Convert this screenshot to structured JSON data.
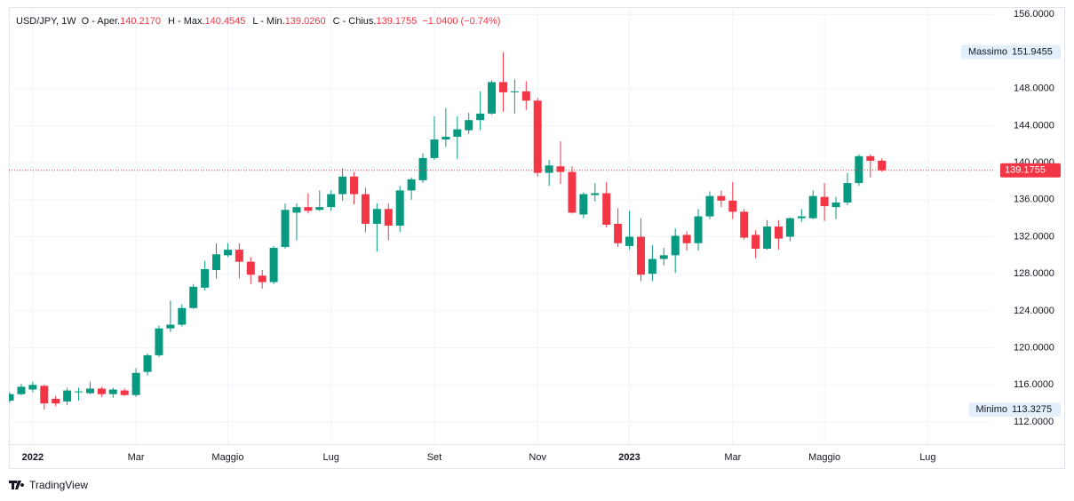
{
  "chart_data": {
    "type": "candlestick",
    "symbol": "USD/JPY, 1W",
    "ohlc_legend": [
      {
        "label": "O - Aper.",
        "value": "140.2170"
      },
      {
        "label": "H - Max.",
        "value": "140.4545"
      },
      {
        "label": "L - Min.",
        "value": "139.0260"
      },
      {
        "label": "C - Chius.",
        "value": "139.1755"
      }
    ],
    "change": "−1.0400 (−0.74%)",
    "up_color": "#089981",
    "down_color": "#f23645",
    "open": [
      114.3,
      115.0,
      115.5,
      115.9,
      114.5,
      114.2,
      115.2,
      115.1,
      115.6,
      115.0,
      115.4,
      114.9,
      117.4,
      119.2,
      122.1,
      122.5,
      124.3,
      126.5,
      128.4,
      130.0,
      130.6,
      129.3,
      127.8,
      127.1,
      130.9,
      134.6,
      135.2,
      134.9,
      135.2,
      136.6,
      138.5,
      136.6,
      133.4,
      135.0,
      133.2,
      137.0,
      138.1,
      140.5,
      142.5,
      142.8,
      143.5,
      144.6,
      145.3,
      148.7,
      147.6,
      147.7,
      146.7,
      138.9,
      139.6,
      139.0,
      134.4,
      136.5,
      136.7,
      133.4,
      131.0,
      132.0,
      128.0,
      129.6,
      130.0,
      132.2,
      131.3,
      134.2,
      136.4,
      135.9,
      134.7,
      132.2,
      130.7,
      133.1,
      132.0,
      134.0,
      134.0,
      136.3,
      135.2,
      135.7,
      137.8,
      140.7,
      140.217
    ],
    "high": [
      115.2,
      116.1,
      116.35,
      116.0,
      114.8,
      115.7,
      115.7,
      116.35,
      115.8,
      115.7,
      115.6,
      117.8,
      119.4,
      122.4,
      125.1,
      124.7,
      126.9,
      129.4,
      131.3,
      131.3,
      131.3,
      129.8,
      128.4,
      131.0,
      135.6,
      135.6,
      136.7,
      137.0,
      137.0,
      139.4,
      139.0,
      137.3,
      135.6,
      135.6,
      137.5,
      138.4,
      141.0,
      145.0,
      145.9,
      145.0,
      145.4,
      147.7,
      148.9,
      151.9455,
      149.0,
      148.8,
      147.0,
      140.3,
      142.3,
      139.6,
      136.8,
      137.8,
      137.9,
      135.1,
      134.8,
      134.0,
      131.1,
      130.8,
      132.9,
      132.6,
      135.0,
      136.9,
      137.0,
      137.9,
      135.0,
      132.7,
      133.8,
      133.8,
      134.1,
      135.0,
      137.0,
      137.8,
      136.3,
      138.9,
      140.9,
      140.9,
      140.4545
    ],
    "low": [
      114.1,
      114.9,
      115.2,
      113.3275,
      113.7,
      113.8,
      114.3,
      115.0,
      114.7,
      114.6,
      114.8,
      114.7,
      117.0,
      119.0,
      121.7,
      122.3,
      124.2,
      126.2,
      127.5,
      129.8,
      127.5,
      126.9,
      126.4,
      126.9,
      130.7,
      131.6,
      134.5,
      134.8,
      134.8,
      135.9,
      135.5,
      132.5,
      130.4,
      131.6,
      132.5,
      136.0,
      137.8,
      140.3,
      141.7,
      140.4,
      143.1,
      143.5,
      145.2,
      145.5,
      145.3,
      145.7,
      138.5,
      137.5,
      137.7,
      134.5,
      134.0,
      135.8,
      133.0,
      130.9,
      130.6,
      127.2,
      127.2,
      128.9,
      128.1,
      130.5,
      130.5,
      133.9,
      135.2,
      133.9,
      131.7,
      129.7,
      130.6,
      130.6,
      131.5,
      133.6,
      133.9,
      133.7,
      133.9,
      135.4,
      137.5,
      138.4,
      139.026
    ],
    "close": [
      115.0,
      115.8,
      116.0,
      114.0,
      114.0,
      115.4,
      115.3,
      115.6,
      115.0,
      115.5,
      114.9,
      117.3,
      119.2,
      122.1,
      122.5,
      124.3,
      126.6,
      128.5,
      130.1,
      130.6,
      129.3,
      127.9,
      127.1,
      130.8,
      134.9,
      135.2,
      134.8,
      135.2,
      136.6,
      138.5,
      136.6,
      133.4,
      135.0,
      133.2,
      137.0,
      138.2,
      140.5,
      142.5,
      142.8,
      143.6,
      144.6,
      145.3,
      148.7,
      147.6,
      147.7,
      146.7,
      138.9,
      139.7,
      139.0,
      134.6,
      136.6,
      136.7,
      133.3,
      131.3,
      132.0,
      127.9,
      129.6,
      130.0,
      132.1,
      131.3,
      134.2,
      136.4,
      135.9,
      134.7,
      131.9,
      130.7,
      133.1,
      131.8,
      134.0,
      134.2,
      136.4,
      135.3,
      135.7,
      137.8,
      140.7,
      140.2,
      139.1755
    ],
    "xlim": [
      -0.08,
      85.7
    ],
    "xticks": [
      {
        "value": 2,
        "label": "2022"
      },
      {
        "value": 11,
        "label": "Mar"
      },
      {
        "value": 19,
        "label": "Maggio"
      },
      {
        "value": 28,
        "label": "Lug"
      },
      {
        "value": 37,
        "label": "Set"
      },
      {
        "value": 46,
        "label": "Nov"
      },
      {
        "value": 54,
        "label": "2023"
      },
      {
        "value": 63,
        "label": "Mar"
      },
      {
        "value": 71,
        "label": "Maggio"
      },
      {
        "value": 80,
        "label": "Lug"
      }
    ],
    "ylim": [
      109.6,
      156.8
    ],
    "yticks": [
      {
        "value": 112,
        "label": "112.0000"
      },
      {
        "value": 116,
        "label": "116.0000"
      },
      {
        "value": 120,
        "label": "120.0000"
      },
      {
        "value": 124,
        "label": "124.0000"
      },
      {
        "value": 128,
        "label": "128.0000"
      },
      {
        "value": 132,
        "label": "132.0000"
      },
      {
        "value": 136,
        "label": "136.0000"
      },
      {
        "value": 140,
        "label": "140.0000"
      },
      {
        "value": 144,
        "label": "144.0000"
      },
      {
        "value": 148,
        "label": "148.0000"
      },
      {
        "value": 156,
        "label": "156.0000"
      }
    ],
    "grid": true,
    "markers": [
      {
        "label": "Massimo",
        "value": 151.9455,
        "value_label": "151.9455"
      },
      {
        "label": "Minimo",
        "value": 113.3275,
        "value_label": "113.3275"
      }
    ],
    "last_price": {
      "value": 139.1755,
      "value_label": "139.1755"
    },
    "brand": "TradingView"
  }
}
